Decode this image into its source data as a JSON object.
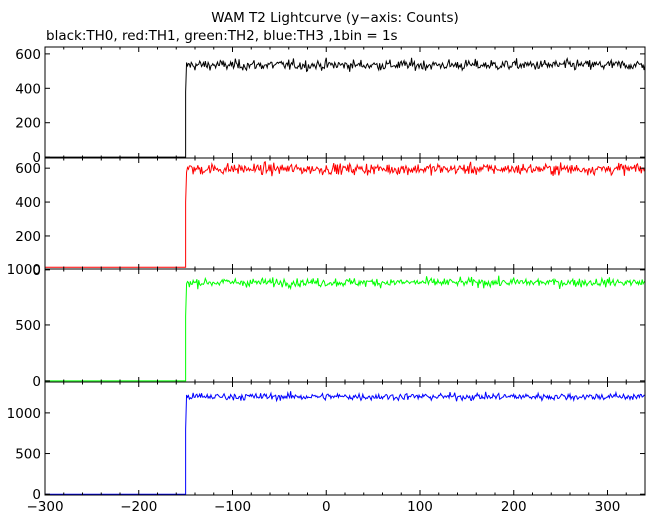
{
  "chart_data": [
    {
      "type": "line",
      "title": "WAM T2 Lightcurve (y−axis: Counts)",
      "subtitle": "black:TH0, red:TH1, green:TH2, blue:TH3 ,1bin = 1s",
      "xlim": [
        -300,
        340
      ],
      "x_ticks": [
        -300,
        -200,
        -100,
        0,
        100,
        200,
        300
      ],
      "x_tick_labels": [
        "−300",
        "−200",
        "−100",
        "0",
        "100",
        "200",
        "300"
      ],
      "grid": false,
      "panels": [
        {
          "name": "TH0",
          "color": "#000000",
          "ylim": [
            -5,
            640
          ],
          "y_ticks": [
            0,
            200,
            400,
            600
          ],
          "y_tick_labels": [
            "0",
            "200",
            "400",
            "600"
          ],
          "series": [
            {
              "x_start": -300,
              "x_end": -150,
              "level": 0,
              "noise": 0
            },
            {
              "x_start": -150,
              "x_end": 340,
              "level": 535,
              "noise": 28,
              "spike": 380
            }
          ]
        },
        {
          "name": "TH1",
          "color": "#ff0000",
          "ylim": [
            5,
            660
          ],
          "y_ticks": [
            0,
            200,
            400,
            600
          ],
          "y_tick_labels": [
            "0",
            "200",
            "400",
            "600"
          ],
          "series": [
            {
              "x_start": -300,
              "x_end": -150,
              "level": 15,
              "noise": 0
            },
            {
              "x_start": -150,
              "x_end": 340,
              "level": 595,
              "noise": 30,
              "spike": 400
            }
          ]
        },
        {
          "name": "TH2",
          "color": "#00ff00",
          "ylim": [
            -10,
            1000
          ],
          "y_ticks": [
            0,
            500,
            1000
          ],
          "y_tick_labels": [
            "0",
            "500",
            "1000"
          ],
          "series": [
            {
              "x_start": -300,
              "x_end": -150,
              "level": 0,
              "noise": 0
            },
            {
              "x_start": -150,
              "x_end": 340,
              "level": 880,
              "noise": 35,
              "spike": 580
            }
          ]
        },
        {
          "name": "TH3",
          "color": "#0000ff",
          "ylim": [
            -10,
            1380
          ],
          "y_ticks": [
            0,
            500,
            1000
          ],
          "y_tick_labels": [
            "0",
            "500",
            "1000"
          ],
          "series": [
            {
              "x_start": -300,
              "x_end": -150,
              "level": 0,
              "noise": 0
            },
            {
              "x_start": -150,
              "x_end": 340,
              "level": 1200,
              "noise": 40,
              "spike": 800
            }
          ]
        }
      ]
    }
  ]
}
